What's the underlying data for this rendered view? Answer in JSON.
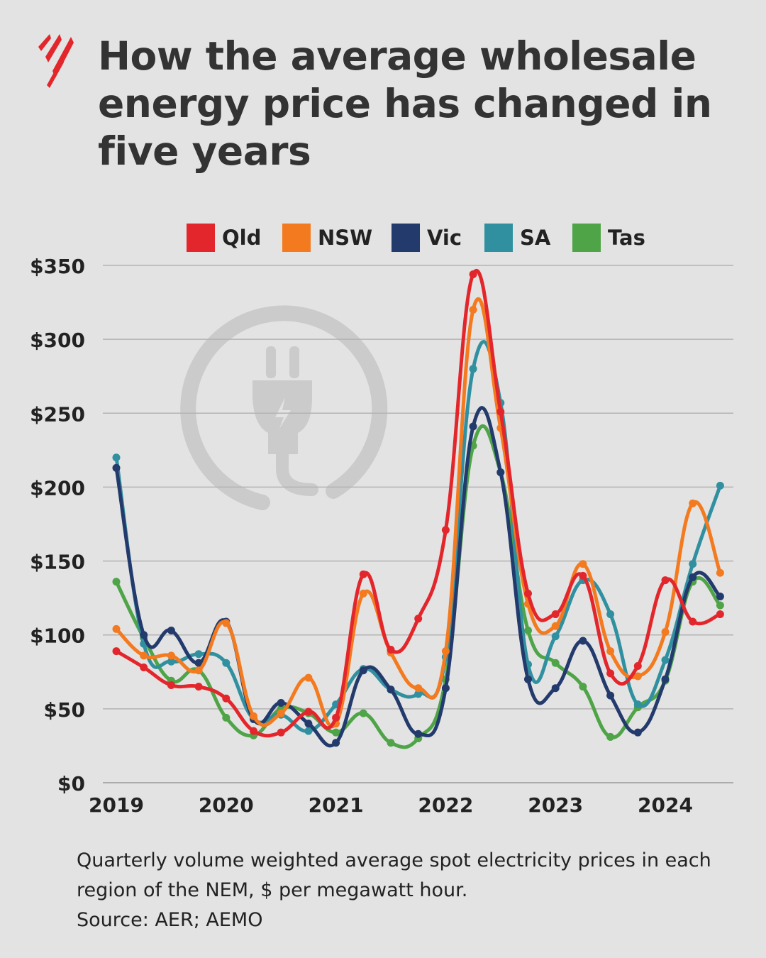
{
  "title": "How the average wholesale energy price has changed in five years",
  "caption": {
    "description": "Quarterly volume weighted average spot electricity prices in each region of the NEM, $ per megawatt hour.",
    "source": "Source: AER; AEMO"
  },
  "brand_color": "#e3262b",
  "chart_data": {
    "type": "line",
    "smoothed": true,
    "markers": true,
    "title": "",
    "xlabel": "",
    "ylabel": "",
    "x": [
      2019.0,
      2019.25,
      2019.5,
      2019.75,
      2020.0,
      2020.25,
      2020.5,
      2020.75,
      2021.0,
      2021.25,
      2021.5,
      2021.75,
      2022.0,
      2022.25,
      2022.5,
      2022.75,
      2023.0,
      2023.25,
      2023.5,
      2023.75,
      2024.0,
      2024.25,
      2024.5
    ],
    "xticks": [
      2019,
      2020,
      2021,
      2022,
      2023,
      2024
    ],
    "xtick_labels": [
      "2019",
      "2020",
      "2021",
      "2022",
      "2023",
      "2024"
    ],
    "ylim": [
      0,
      350
    ],
    "yticks": [
      0,
      50,
      100,
      150,
      200,
      250,
      300,
      350
    ],
    "ytick_labels": [
      "$0",
      "$50",
      "$100",
      "$150",
      "$200",
      "$250",
      "$300",
      "$350"
    ],
    "grid": "horizontal",
    "legend_position": "top-center",
    "series": [
      {
        "name": "Qld",
        "color": "#e3262b",
        "values": [
          89,
          78,
          66,
          65,
          57,
          35,
          34,
          48,
          44,
          141,
          90,
          111,
          171,
          344,
          251,
          128,
          114,
          140,
          74,
          79,
          137,
          109,
          114
        ]
      },
      {
        "name": "NSW",
        "color": "#f47a1f",
        "values": [
          104,
          86,
          86,
          76,
          108,
          45,
          47,
          71,
          40,
          128,
          88,
          64,
          89,
          320,
          240,
          121,
          106,
          148,
          89,
          72,
          102,
          189,
          142
        ]
      },
      {
        "name": "Vic",
        "color": "#233a6c",
        "values": [
          213,
          100,
          103,
          81,
          109,
          43,
          54,
          40,
          27,
          76,
          63,
          33,
          64,
          241,
          210,
          70,
          64,
          96,
          59,
          34,
          70,
          139,
          126
        ]
      },
      {
        "name": "SA",
        "color": "#3190a0",
        "values": [
          220,
          94,
          82,
          87,
          81,
          43,
          46,
          35,
          53,
          77,
          63,
          60,
          85,
          280,
          257,
          80,
          99,
          137,
          114,
          53,
          83,
          148,
          201
        ]
      },
      {
        "name": "Tas",
        "color": "#4ea447",
        "values": [
          136,
          98,
          69,
          76,
          44,
          32,
          50,
          47,
          34,
          47,
          27,
          30,
          70,
          228,
          210,
          103,
          81,
          65,
          31,
          51,
          69,
          136,
          120
        ]
      }
    ]
  }
}
